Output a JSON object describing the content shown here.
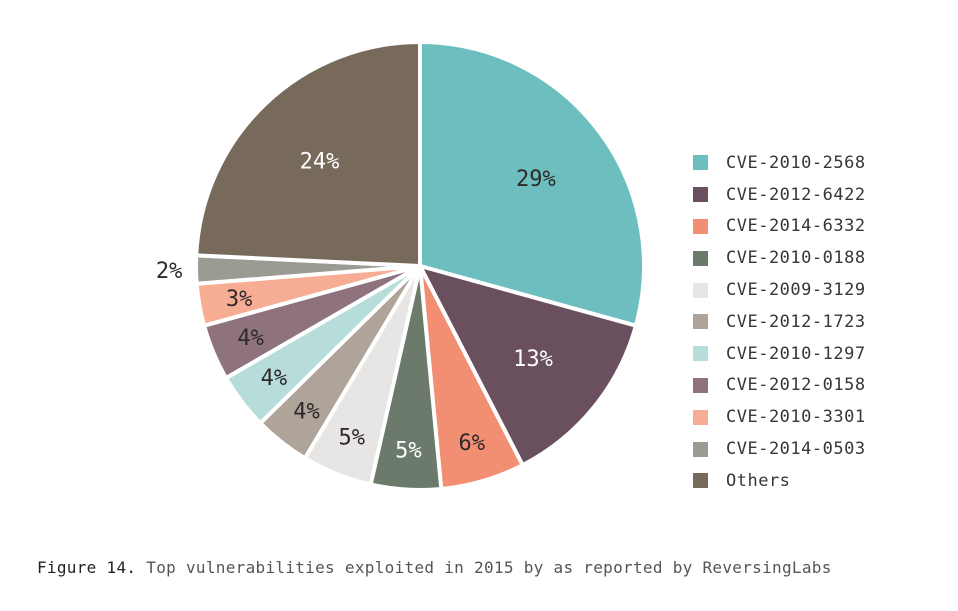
{
  "chart_data": {
    "type": "pie",
    "title": "",
    "start": "top, clockwise",
    "slices": [
      {
        "label": "CVE-2010-2568",
        "value": 29,
        "display": "29%",
        "color": "#6dbfbf",
        "text_color": "#2e2a2a"
      },
      {
        "label": "CVE-2012-6422",
        "value": 13,
        "display": "13%",
        "color": "#6a4f5e",
        "text_color": "#ffffff"
      },
      {
        "label": "CVE-2014-6332",
        "value": 6,
        "display": "6%",
        "color": "#f28e72",
        "text_color": "#2e2a2a"
      },
      {
        "label": "CVE-2010-0188",
        "value": 5,
        "display": "5%",
        "color": "#6c7a6c",
        "text_color": "#ffffff"
      },
      {
        "label": "CVE-2009-3129",
        "value": 5,
        "display": "5%",
        "color": "#e8e6e4",
        "text_color": "#2e2a2a"
      },
      {
        "label": "CVE-2012-1723",
        "value": 4,
        "display": "4%",
        "color": "#aea499",
        "text_color": "#2e2a2a"
      },
      {
        "label": "CVE-2010-1297",
        "value": 4,
        "display": "4%",
        "color": "#b7dddb",
        "text_color": "#2e2a2a"
      },
      {
        "label": "CVE-2012-0158",
        "value": 4,
        "display": "4%",
        "color": "#8e737f",
        "text_color": "#2e2a2a"
      },
      {
        "label": "CVE-2010-3301",
        "value": 3,
        "display": "3%",
        "color": "#f6ad94",
        "text_color": "#2e2a2a"
      },
      {
        "label": "CVE-2014-0503",
        "value": 2,
        "display": "2%",
        "color": "#9a9c93",
        "text_color": "#2e2a2a"
      },
      {
        "label": "Others",
        "value": 24,
        "display": "24%",
        "color": "#776a5b",
        "text_color": "#ffffff"
      }
    ],
    "legend_position": "right"
  },
  "caption": {
    "prefix": "Figure 14.",
    "text": " Top vulnerabilities exploited in 2015 by as reported by ReversingLabs"
  }
}
